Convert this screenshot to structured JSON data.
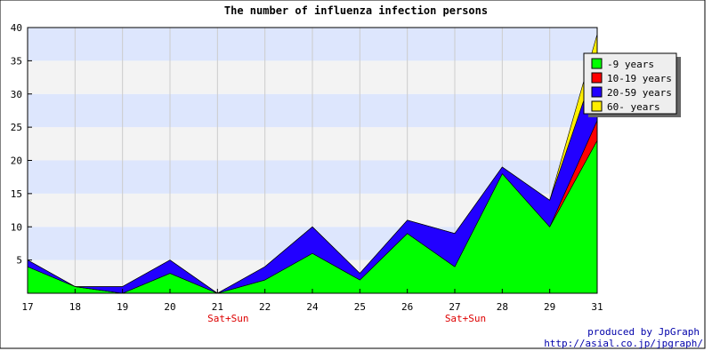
{
  "chart_data": {
    "type": "area",
    "stacked": true,
    "title": "The number of influenza infection persons",
    "categories": [
      "17",
      "18",
      "19",
      "20",
      "21",
      "22",
      "24",
      "25",
      "26",
      "27",
      "28",
      "29",
      "31"
    ],
    "day_notes": {
      "21": "Sat+Sun",
      "27": "Sat+Sun"
    },
    "ylim": [
      0,
      40
    ],
    "yticks": [
      5,
      10,
      15,
      20,
      25,
      30,
      35,
      40
    ],
    "grid": true,
    "legend_position": "top-right",
    "series": [
      {
        "name": "-9 years",
        "color": "#00ff00",
        "values": [
          4,
          1,
          0,
          3,
          0,
          2,
          6,
          2,
          9,
          4,
          18,
          10,
          23
        ]
      },
      {
        "name": "10-19 years",
        "color": "#ff0000",
        "values": [
          0,
          0,
          0,
          0,
          0,
          0,
          0,
          0,
          0,
          0,
          0,
          0,
          3
        ]
      },
      {
        "name": "20-59 years",
        "color": "#2200ff",
        "values": [
          1,
          0,
          1,
          2,
          0,
          2,
          4,
          1,
          2,
          5,
          1,
          4,
          9
        ]
      },
      {
        "name": "60- years",
        "color": "#ffee00",
        "values": [
          0,
          0,
          0,
          0,
          0,
          0,
          0,
          0,
          0,
          0,
          0,
          0,
          4
        ]
      }
    ],
    "credits": [
      "produced by JpGraph",
      "http://asial.co.jp/jpgraph/"
    ]
  }
}
